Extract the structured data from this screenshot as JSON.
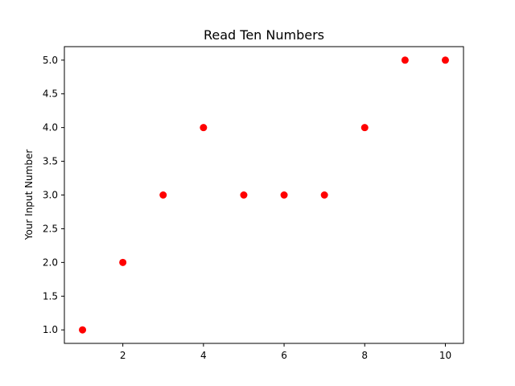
{
  "chart_data": {
    "type": "scatter",
    "title": "Read Ten Numbers",
    "xlabel": "",
    "ylabel": "Your Input Number",
    "x": [
      1,
      2,
      3,
      4,
      5,
      6,
      7,
      8,
      9,
      10
    ],
    "y": [
      1.0,
      2.0,
      3.0,
      4.0,
      3.0,
      3.0,
      3.0,
      4.0,
      5.0,
      5.0
    ],
    "xlim": [
      0.55,
      10.45
    ],
    "ylim": [
      0.8,
      5.2
    ],
    "xticks": [
      2,
      4,
      6,
      8,
      10
    ],
    "xtick_labels": [
      "2",
      "4",
      "6",
      "8",
      "10"
    ],
    "yticks": [
      1.0,
      1.5,
      2.0,
      2.5,
      3.0,
      3.5,
      4.0,
      4.5,
      5.0
    ],
    "ytick_labels": [
      "1.0",
      "1.5",
      "2.0",
      "2.5",
      "3.0",
      "3.5",
      "4.0",
      "4.5",
      "5.0"
    ],
    "marker_color": "#ff0000",
    "grid": false,
    "legend": "none"
  }
}
